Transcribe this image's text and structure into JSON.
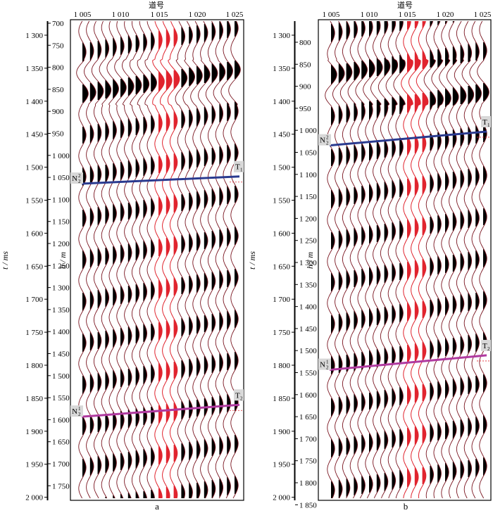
{
  "figure": {
    "panels": [
      {
        "label": "a",
        "x_title": "道号",
        "trace_ticks": [
          "1 005",
          "1 010",
          "1 015",
          "1 020",
          "1 025"
        ],
        "t_axis_title": "t / ms",
        "h_axis_title": "h / m",
        "t_ticks": [
          "1 300",
          "1 350",
          "1 400",
          "1 450",
          "1 500",
          "1 550",
          "1 600",
          "1 650",
          "1 700",
          "1 750",
          "1 800",
          "1 850",
          "1 900",
          "1 950",
          "2 000"
        ],
        "h_ticks": [
          "700",
          "750",
          "800",
          "850",
          "900",
          "950",
          "1 000",
          "1 050",
          "1 100",
          "1 150",
          "1 200",
          "1 250",
          "1 300",
          "1 350",
          "1 400",
          "1 450",
          "1 500",
          "1 550",
          "1 600",
          "1 650",
          "1 700",
          "1 750"
        ],
        "horizons": [
          {
            "name": "T",
            "sub": "1",
            "left_name": "N",
            "left_sup": "2",
            "left_sub": "2",
            "color": "#2a3a8f",
            "start_trace": 1005,
            "end_trace": 1025,
            "start_ms": 1525,
            "end_ms": 1514
          },
          {
            "name": "T",
            "sub": "2",
            "left_name": "N",
            "left_sup": "1",
            "left_sub": "2",
            "color": "#b03aa0",
            "start_trace": 1005,
            "end_trace": 1025,
            "start_ms": 1878,
            "end_ms": 1860
          }
        ]
      },
      {
        "label": "b",
        "x_title": "道号",
        "trace_ticks": [
          "1 005",
          "1 010",
          "1 015",
          "1 020",
          "1 025"
        ],
        "t_axis_title": "t / ms",
        "h_axis_title": "h / m",
        "t_ticks": [
          "1 300",
          "1 350",
          "1 400",
          "1 450",
          "1 500",
          "1 550",
          "1 600",
          "1 650",
          "1 700",
          "1 750",
          "1 800",
          "1 850",
          "1 900",
          "1 950",
          "2 000"
        ],
        "h_ticks": [
          "800",
          "850",
          "900",
          "950",
          "1 000",
          "1 050",
          "1 100",
          "1 150",
          "1 200",
          "1 250",
          "1 300",
          "1 350",
          "1 400",
          "1 450",
          "1 500",
          "1 550",
          "1 600",
          "1 650",
          "1 700",
          "1 750",
          "1 800",
          "1 850"
        ],
        "horizons": [
          {
            "name": "T",
            "sub": "1",
            "left_name": "N",
            "left_sup": "2",
            "left_sub": "2",
            "color": "#2a3a8f",
            "start_trace": 1005,
            "end_trace": 1025,
            "start_ms": 1467,
            "end_ms": 1446
          },
          {
            "name": "T",
            "sub": "2",
            "left_name": "N",
            "left_sup": "1",
            "left_sub": "2",
            "color": "#b03aa0",
            "start_trace": 1005,
            "end_trace": 1025,
            "start_ms": 1807,
            "end_ms": 1785
          }
        ]
      }
    ]
  }
}
